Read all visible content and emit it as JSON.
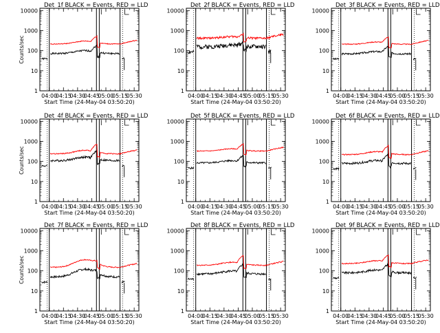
{
  "chart_data": {
    "type": "line",
    "layout": "3x3 grid of panels",
    "shared": {
      "x_tick_labels": [
        "04:00",
        "04:15",
        "04:30",
        "04:45",
        "05:00",
        "05:15",
        "05:30"
      ],
      "x_ticks_min": [
        0,
        15,
        30,
        45,
        60,
        75,
        90
      ],
      "xlim_min": [
        -10,
        95
      ],
      "xlabel": "Start Time (24-May-04 03:50:20)",
      "y_tick_labels": [
        "1",
        "10",
        "100",
        "1000",
        "10000"
      ],
      "y_ticks": [
        1,
        10,
        100,
        1000,
        10000
      ],
      "ylim": [
        1,
        13000
      ],
      "yscale": "log",
      "ylabel": "Counts/sec",
      "vertical_lines_min": [
        0,
        50,
        53,
        75
      ],
      "dotted_line_min": 0,
      "legend": "none (series identified in title)",
      "grid": false
    },
    "colors": {
      "events": "#000000",
      "lld": "#ff0000",
      "frame": "#000000"
    },
    "panels": [
      {
        "title": "Det_1f BLACK = Events, RED = LLD",
        "show_ylabel": true,
        "events_base": 72,
        "lld_base": 215,
        "bump": 1.4,
        "spike": 2.2,
        "noise": 0.1,
        "seed": 1
      },
      {
        "title": "Det_2f BLACK = Events, RED = LLD",
        "show_ylabel": false,
        "events_base": 160,
        "lld_base": 420,
        "bump": 1.2,
        "spike": 1.5,
        "noise": 0.25,
        "seed": 2
      },
      {
        "title": "Det_3f BLACK = Events, RED = LLD",
        "show_ylabel": false,
        "events_base": 70,
        "lld_base": 210,
        "bump": 1.3,
        "spike": 2.2,
        "noise": 0.1,
        "seed": 3
      },
      {
        "title": "Det_4f BLACK = Events, RED = LLD",
        "show_ylabel": true,
        "events_base": 110,
        "lld_base": 240,
        "bump": 1.5,
        "spike": 2.6,
        "noise": 0.12,
        "seed": 4
      },
      {
        "title": "Det_5f BLACK = Events, RED = LLD",
        "show_ylabel": false,
        "events_base": 85,
        "lld_base": 330,
        "bump": 1.3,
        "spike": 2.1,
        "noise": 0.1,
        "seed": 5
      },
      {
        "title": "Det_6f BLACK = Events, RED = LLD",
        "show_ylabel": false,
        "events_base": 80,
        "lld_base": 220,
        "bump": 1.4,
        "spike": 2.5,
        "noise": 0.12,
        "seed": 6
      },
      {
        "title": "Det_7f BLACK = Events, RED = LLD",
        "show_ylabel": true,
        "events_base": 50,
        "lld_base": 150,
        "bump": 2.4,
        "spike": 1.3,
        "noise": 0.12,
        "seed": 7
      },
      {
        "title": "Det_8f BLACK = Events, RED = LLD",
        "show_ylabel": false,
        "events_base": 70,
        "lld_base": 190,
        "bump": 1.4,
        "spike": 2.8,
        "noise": 0.12,
        "seed": 8
      },
      {
        "title": "Det_9f BLACK = Events, RED = LLD",
        "show_ylabel": false,
        "events_base": 80,
        "lld_base": 230,
        "bump": 1.4,
        "spike": 2.4,
        "noise": 0.12,
        "seed": 9
      }
    ]
  }
}
